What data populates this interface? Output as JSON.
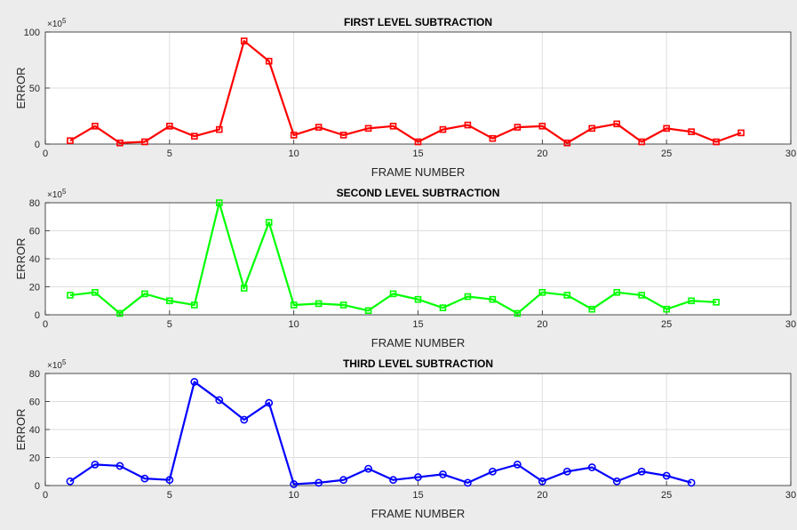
{
  "figure": {
    "background": "#ececec",
    "axes_background": "#ffffff",
    "grid_color": "#dedede",
    "axis_color": "#262626"
  },
  "chart_data": [
    {
      "type": "line",
      "title": "FIRST LEVEL SUBTRACTION",
      "xlabel": "FRAME NUMBER",
      "ylabel": "ERROR",
      "exponent_label": "×10",
      "exponent_power": "5",
      "xlim": [
        0,
        30
      ],
      "ylim": [
        0,
        100
      ],
      "xticks": [
        0,
        5,
        10,
        15,
        20,
        25,
        30
      ],
      "yticks": [
        0,
        50,
        100
      ],
      "grid": true,
      "marker": "square",
      "series": [
        {
          "color": "#ff0000",
          "x": [
            1,
            2,
            3,
            4,
            5,
            6,
            7,
            8,
            9,
            10,
            11,
            12,
            13,
            14,
            15,
            16,
            17,
            18,
            19,
            20,
            21,
            22,
            23,
            24,
            25,
            26,
            27,
            28
          ],
          "y": [
            3,
            16,
            1,
            2,
            16,
            7,
            13,
            92,
            74,
            8,
            15,
            8,
            14,
            16,
            2,
            13,
            17,
            5,
            15,
            16,
            1,
            14,
            18,
            2,
            14,
            11,
            2,
            10
          ]
        }
      ]
    },
    {
      "type": "line",
      "title": "SECOND LEVEL SUBTRACTION",
      "xlabel": "FRAME NUMBER",
      "ylabel": "ERROR",
      "exponent_label": "×10",
      "exponent_power": "5",
      "xlim": [
        0,
        30
      ],
      "ylim": [
        0,
        80
      ],
      "xticks": [
        0,
        5,
        10,
        15,
        20,
        25,
        30
      ],
      "yticks": [
        0,
        20,
        40,
        60,
        80
      ],
      "grid": true,
      "marker": "square",
      "series": [
        {
          "color": "#00ff00",
          "x": [
            1,
            2,
            3,
            4,
            5,
            6,
            7,
            8,
            9,
            10,
            11,
            12,
            13,
            14,
            15,
            16,
            17,
            18,
            19,
            20,
            21,
            22,
            23,
            24,
            25,
            26,
            27
          ],
          "y": [
            14,
            16,
            1,
            15,
            10,
            7,
            80,
            19,
            66,
            7,
            8,
            7,
            3,
            15,
            11,
            5,
            13,
            11,
            1,
            16,
            14,
            4,
            16,
            14,
            4,
            10,
            9
          ]
        }
      ]
    },
    {
      "type": "line",
      "title": "THIRD LEVEL SUBTRACTION",
      "xlabel": "FRAME NUMBER",
      "ylabel": "ERROR",
      "exponent_label": "×10",
      "exponent_power": "5",
      "xlim": [
        0,
        30
      ],
      "ylim": [
        0,
        80
      ],
      "xticks": [
        0,
        5,
        10,
        15,
        20,
        25,
        30
      ],
      "yticks": [
        0,
        20,
        40,
        60,
        80
      ],
      "grid": true,
      "marker": "circle",
      "series": [
        {
          "color": "#0000ff",
          "x": [
            1,
            2,
            3,
            4,
            5,
            6,
            7,
            8,
            9,
            10,
            11,
            12,
            13,
            14,
            15,
            16,
            17,
            18,
            19,
            20,
            21,
            22,
            23,
            24,
            25,
            26
          ],
          "y": [
            3,
            15,
            14,
            5,
            4,
            74,
            61,
            47,
            59,
            1,
            2,
            4,
            12,
            4,
            6,
            8,
            2,
            10,
            15,
            3,
            10,
            13,
            3,
            10,
            7,
            2
          ]
        }
      ]
    }
  ]
}
